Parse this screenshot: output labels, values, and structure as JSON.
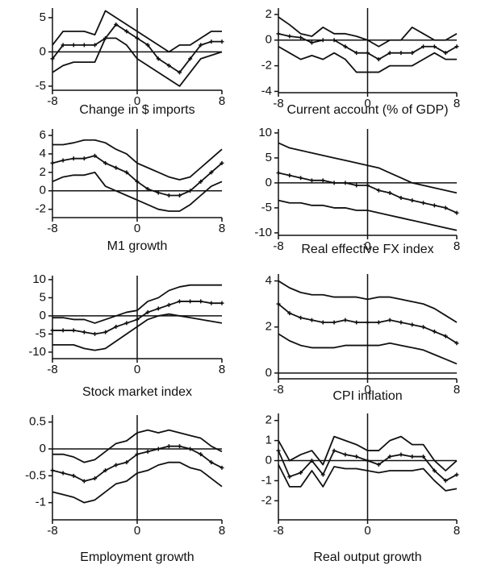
{
  "chart_data": [
    {
      "type": "line",
      "title": "Change in $ imports",
      "x": [
        -8,
        -7,
        -6,
        -5,
        -4,
        -3,
        -2,
        -1,
        0,
        1,
        2,
        3,
        4,
        5,
        6,
        7,
        8
      ],
      "xlim": [
        -8,
        8
      ],
      "xticks": [
        -8,
        0,
        8
      ],
      "ylim": [
        -5.6,
        6.4
      ],
      "yticks": [
        -5,
        0,
        5
      ],
      "series": [
        {
          "color": "#111111",
          "values": [
            1,
            3,
            3,
            3,
            2.5,
            6,
            5,
            4,
            3,
            2,
            1,
            0,
            1,
            1,
            2,
            3,
            3
          ]
        },
        {
          "color": "#111111",
          "marker": true,
          "values": [
            -1,
            1,
            1,
            1,
            1,
            2,
            4,
            3,
            2,
            1,
            -1,
            -2,
            -3,
            -1,
            1,
            1.5,
            1.5
          ]
        },
        {
          "color": "#111111",
          "values": [
            -3,
            -2,
            -1.5,
            -1.5,
            -1.5,
            2,
            2,
            1,
            -1,
            -2,
            -3,
            -4,
            -5,
            -3,
            -1,
            -0.5,
            0
          ]
        }
      ]
    },
    {
      "type": "line",
      "title": "Current account (% of GDP)",
      "x": [
        -8,
        -7,
        -6,
        -5,
        -4,
        -3,
        -2,
        -1,
        0,
        1,
        2,
        3,
        4,
        5,
        6,
        7,
        8
      ],
      "xlim": [
        -8,
        8
      ],
      "xticks": [
        -8,
        0,
        8
      ],
      "ylim": [
        -4.1,
        2.5
      ],
      "yticks": [
        -4,
        -2,
        0,
        2
      ],
      "series": [
        {
          "color": "#111111",
          "values": [
            1.8,
            1.2,
            0.5,
            0.3,
            1,
            0.5,
            0.5,
            0.3,
            0,
            -0.5,
            0,
            0,
            1,
            0.5,
            0,
            0,
            0.5
          ]
        },
        {
          "color": "#111111",
          "marker": true,
          "values": [
            0.5,
            0.3,
            0.2,
            -0.2,
            0,
            0,
            -0.5,
            -1,
            -1,
            -1.5,
            -1,
            -1,
            -1,
            -0.5,
            -0.5,
            -1,
            -0.5
          ]
        },
        {
          "color": "#111111",
          "values": [
            -0.5,
            -1,
            -1.5,
            -1.2,
            -1.5,
            -1,
            -1.5,
            -2.5,
            -2.5,
            -2.5,
            -2,
            -2,
            -2,
            -1.5,
            -1,
            -1.5,
            -1.5
          ]
        }
      ]
    },
    {
      "type": "line",
      "title": "M1 growth",
      "x": [
        -8,
        -7,
        -6,
        -5,
        -4,
        -3,
        -2,
        -1,
        0,
        1,
        2,
        3,
        4,
        5,
        6,
        7,
        8
      ],
      "xlim": [
        -8,
        8
      ],
      "xticks": [
        -8,
        0,
        8
      ],
      "ylim": [
        -2.9,
        6.7
      ],
      "yticks": [
        -2,
        0,
        2,
        4,
        6
      ],
      "series": [
        {
          "color": "#111111",
          "values": [
            5,
            5,
            5.2,
            5.5,
            5.5,
            5.2,
            4.5,
            4,
            3,
            2.5,
            2,
            1.5,
            1.2,
            1.5,
            2.5,
            3.5,
            4.5
          ]
        },
        {
          "color": "#111111",
          "marker": true,
          "values": [
            3,
            3.3,
            3.5,
            3.5,
            3.8,
            3,
            2.5,
            2,
            1,
            0.2,
            -0.2,
            -0.5,
            -0.5,
            0,
            1,
            2,
            3
          ]
        },
        {
          "color": "#111111",
          "values": [
            1,
            1.5,
            1.7,
            1.7,
            2,
            0.5,
            0,
            -0.5,
            -1,
            -1.5,
            -2,
            -2.2,
            -2.2,
            -1.5,
            -0.5,
            0.5,
            1
          ]
        }
      ]
    },
    {
      "type": "line",
      "title": "Real effective FX index",
      "x": [
        -8,
        -7,
        -6,
        -5,
        -4,
        -3,
        -2,
        -1,
        0,
        1,
        2,
        3,
        4,
        5,
        6,
        7,
        8
      ],
      "xlim": [
        -8,
        8
      ],
      "xticks": [
        -8,
        0,
        8
      ],
      "ylim": [
        -10.5,
        10.8
      ],
      "yticks": [
        -10,
        -5,
        0,
        5,
        10
      ],
      "series": [
        {
          "color": "#111111",
          "values": [
            8,
            7,
            6.5,
            6,
            5.5,
            5,
            4.5,
            4,
            3.5,
            3,
            2,
            1,
            0,
            -0.5,
            -1,
            -1.5,
            -2
          ]
        },
        {
          "color": "#111111",
          "marker": true,
          "values": [
            2,
            1.5,
            1,
            0.5,
            0.5,
            0,
            0,
            -0.5,
            -0.5,
            -1.5,
            -2,
            -3,
            -3.5,
            -4,
            -4.5,
            -5,
            -6
          ]
        },
        {
          "color": "#111111",
          "values": [
            -3.5,
            -4,
            -4,
            -4.5,
            -4.5,
            -5,
            -5,
            -5.5,
            -5.5,
            -6,
            -6.5,
            -7,
            -7.5,
            -8,
            -8.5,
            -9,
            -9.5
          ]
        }
      ]
    },
    {
      "type": "line",
      "title": "Stock market index",
      "x": [
        -8,
        -7,
        -6,
        -5,
        -4,
        -3,
        -2,
        -1,
        0,
        1,
        2,
        3,
        4,
        5,
        6,
        7,
        8
      ],
      "xlim": [
        -8,
        8
      ],
      "xticks": [
        -8,
        0,
        8
      ],
      "ylim": [
        -11.8,
        11.1
      ],
      "yticks": [
        -10,
        -5,
        0,
        5,
        10
      ],
      "series": [
        {
          "color": "#111111",
          "values": [
            -0.5,
            -0.5,
            -1,
            -1,
            -2,
            -1,
            0,
            1,
            1.5,
            4,
            5,
            7,
            8,
            8.5,
            8.5,
            8.5,
            8.5
          ]
        },
        {
          "color": "#111111",
          "marker": true,
          "values": [
            -4,
            -4,
            -4,
            -4.5,
            -5,
            -4.5,
            -3,
            -2,
            -1,
            1,
            2,
            3,
            4,
            4,
            4,
            3.5,
            3.5
          ]
        },
        {
          "color": "#111111",
          "values": [
            -8,
            -8,
            -8,
            -9,
            -9.5,
            -9,
            -7,
            -5,
            -3,
            -1,
            0,
            0.5,
            0,
            -0.5,
            -1,
            -1.5,
            -2
          ]
        }
      ]
    },
    {
      "type": "line",
      "title": "CPI inflation",
      "x": [
        -8,
        -7,
        -6,
        -5,
        -4,
        -3,
        -2,
        -1,
        0,
        1,
        2,
        3,
        4,
        5,
        6,
        7,
        8
      ],
      "xlim": [
        -8,
        8
      ],
      "xticks": [
        -8,
        0,
        8
      ],
      "ylim": [
        -0.25,
        4.3
      ],
      "yticks": [
        0,
        2,
        4
      ],
      "series": [
        {
          "color": "#111111",
          "values": [
            4,
            3.7,
            3.5,
            3.4,
            3.4,
            3.3,
            3.3,
            3.3,
            3.2,
            3.3,
            3.3,
            3.2,
            3.1,
            3,
            2.8,
            2.5,
            2.2
          ]
        },
        {
          "color": "#111111",
          "marker": true,
          "values": [
            3,
            2.6,
            2.4,
            2.3,
            2.2,
            2.2,
            2.3,
            2.2,
            2.2,
            2.2,
            2.3,
            2.2,
            2.1,
            2,
            1.8,
            1.6,
            1.3
          ]
        },
        {
          "color": "#111111",
          "values": [
            1.7,
            1.4,
            1.2,
            1.1,
            1.1,
            1.1,
            1.2,
            1.2,
            1.2,
            1.2,
            1.3,
            1.2,
            1.1,
            1,
            0.8,
            0.6,
            0.4
          ]
        }
      ]
    },
    {
      "type": "line",
      "title": "Employment growth",
      "x": [
        -8,
        -7,
        -6,
        -5,
        -4,
        -3,
        -2,
        -1,
        0,
        1,
        2,
        3,
        4,
        5,
        6,
        7,
        8
      ],
      "xlim": [
        -8,
        8
      ],
      "xticks": [
        -8,
        0,
        8
      ],
      "ylim": [
        -1.32,
        0.63
      ],
      "yticks": [
        -1,
        -0.5,
        0,
        0.5
      ],
      "series": [
        {
          "color": "#111111",
          "values": [
            -0.1,
            -0.1,
            -0.15,
            -0.25,
            -0.2,
            -0.05,
            0.1,
            0.15,
            0.3,
            0.35,
            0.3,
            0.35,
            0.3,
            0.25,
            0.2,
            0.05,
            -0.05
          ]
        },
        {
          "color": "#111111",
          "marker": true,
          "values": [
            -0.4,
            -0.45,
            -0.5,
            -0.6,
            -0.55,
            -0.4,
            -0.3,
            -0.25,
            -0.1,
            -0.05,
            0,
            0.05,
            0.05,
            0,
            -0.1,
            -0.25,
            -0.35
          ]
        },
        {
          "color": "#111111",
          "values": [
            -0.8,
            -0.85,
            -0.9,
            -1,
            -0.95,
            -0.8,
            -0.65,
            -0.6,
            -0.45,
            -0.4,
            -0.3,
            -0.25,
            -0.25,
            -0.35,
            -0.4,
            -0.55,
            -0.7
          ]
        }
      ]
    },
    {
      "type": "line",
      "title": "Real output growth",
      "x": [
        -8,
        -7,
        -6,
        -5,
        -4,
        -3,
        -2,
        -1,
        0,
        1,
        2,
        3,
        4,
        5,
        6,
        7,
        8
      ],
      "xlim": [
        -8,
        8
      ],
      "xticks": [
        -8,
        0,
        8
      ],
      "ylim": [
        -2.95,
        2.35
      ],
      "yticks": [
        -2,
        -1,
        0,
        1,
        2
      ],
      "series": [
        {
          "color": "#111111",
          "values": [
            1,
            0,
            0.3,
            0.5,
            -0.2,
            1.2,
            1,
            0.8,
            0.5,
            0.5,
            1,
            1.2,
            0.8,
            0.8,
            0,
            -0.5,
            0
          ]
        },
        {
          "color": "#111111",
          "marker": true,
          "values": [
            0.5,
            -0.8,
            -0.6,
            0,
            -0.7,
            0.5,
            0.3,
            0.2,
            0,
            -0.2,
            0.2,
            0.3,
            0.2,
            0.2,
            -0.5,
            -1,
            -0.7
          ]
        },
        {
          "color": "#111111",
          "values": [
            -0.2,
            -1.3,
            -1.3,
            -0.5,
            -1.3,
            -0.3,
            -0.4,
            -0.4,
            -0.5,
            -0.6,
            -0.5,
            -0.5,
            -0.5,
            -0.4,
            -1,
            -1.5,
            -1.4
          ]
        }
      ]
    }
  ]
}
